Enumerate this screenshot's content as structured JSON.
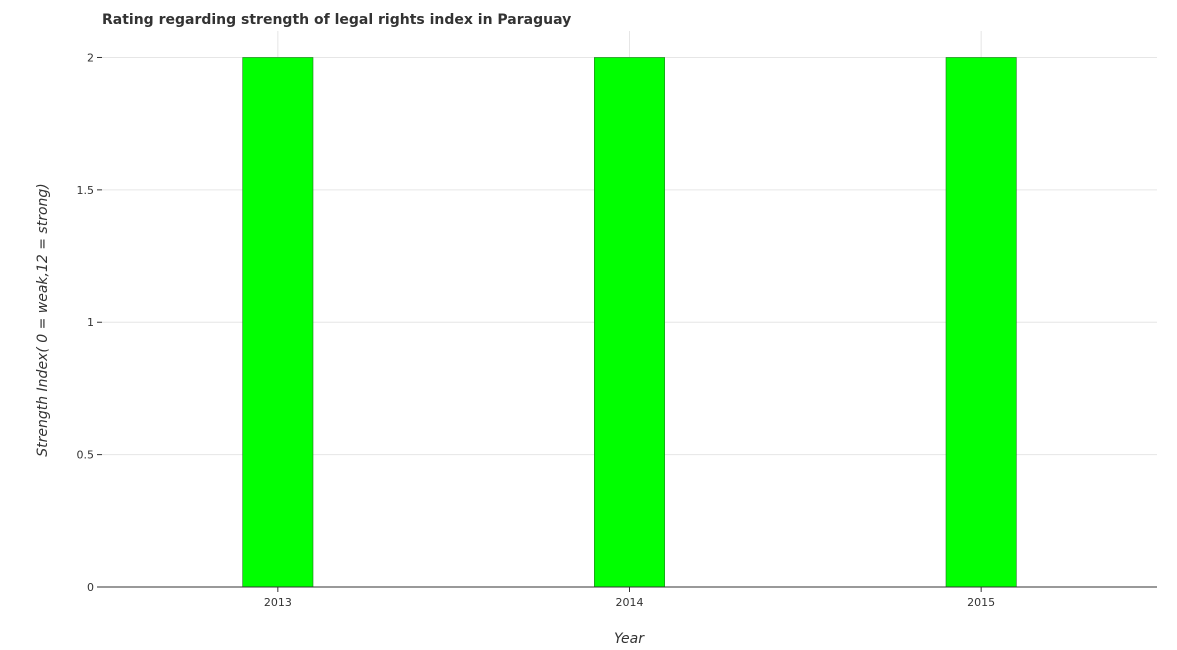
{
  "chart_data": {
    "type": "bar",
    "title": "Rating regarding strength of legal rights index in Paraguay",
    "xlabel": "Year",
    "ylabel": "Strength Index( 0 = weak,12 = strong)",
    "categories": [
      "2013",
      "2014",
      "2015"
    ],
    "values": [
      2,
      2,
      2
    ],
    "ylim": [
      0,
      2.1
    ],
    "yticks": [
      0,
      0.5,
      1,
      1.5,
      2
    ],
    "ytick_labels": [
      "0",
      "0.5",
      "1",
      "1.5",
      "2"
    ],
    "bar_color": "#00ff00",
    "bar_edge_color": "#1a7a1a",
    "grid": true,
    "legend": "none"
  }
}
